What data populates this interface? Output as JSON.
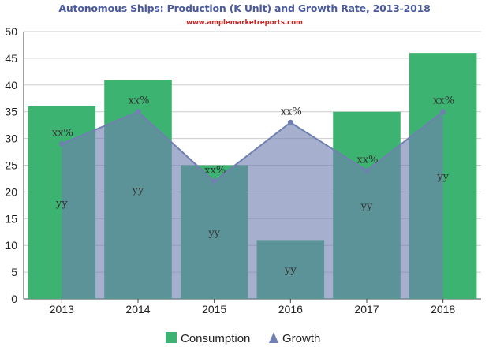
{
  "chart_data": {
    "type": "bar",
    "title": "Autonomous Ships: Production (K Unit) and Growth Rate, 2013-2018",
    "subtitle": "www.amplemarketreports.com",
    "categories": [
      "2013",
      "2014",
      "2015",
      "2016",
      "2017",
      "2018"
    ],
    "series": [
      {
        "name": "Consumption",
        "type": "bar",
        "color": "#3cb371",
        "values": [
          36,
          41,
          25,
          11,
          35,
          46
        ],
        "data_labels": [
          "yy",
          "yy",
          "yy",
          "yy",
          "yy",
          "yy"
        ]
      },
      {
        "name": "Growth",
        "type": "area",
        "color": "#7080b0",
        "values": [
          29,
          35,
          22,
          33,
          24,
          35
        ],
        "data_labels": [
          "xx%",
          "xx%",
          "xx%",
          "xx%",
          "xx%",
          "xx%"
        ]
      }
    ],
    "ylim": [
      0,
      50
    ],
    "yticks": [
      "0",
      "5",
      "10",
      "15",
      "20",
      "25",
      "30",
      "35",
      "40",
      "45",
      "50"
    ],
    "grid": true,
    "legend": "bottom-center",
    "title_color": "#4a5a9a",
    "subtitle_color": "#cc2222"
  }
}
